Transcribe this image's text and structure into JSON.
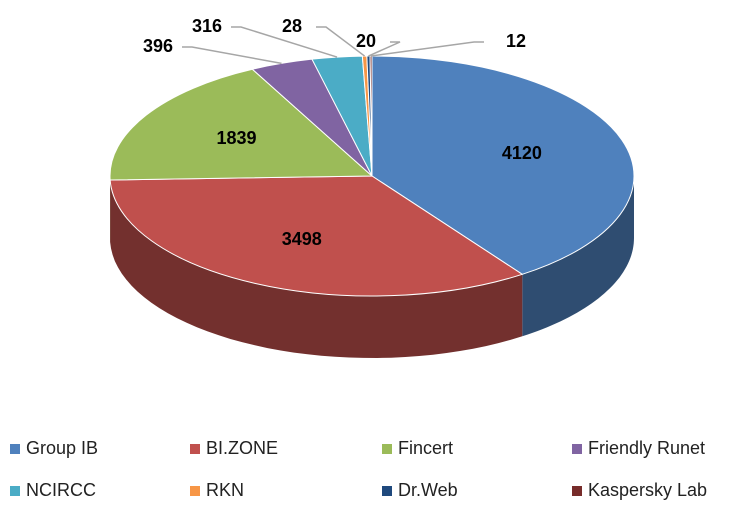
{
  "chart_data": {
    "type": "pie3d",
    "categories": [
      "Group IB",
      "BI.ZONE",
      "Fincert",
      "Friendly Runet",
      "NCIRCC",
      "RKN",
      "Dr.Web",
      "Kaspersky Lab"
    ],
    "values": [
      4120,
      3498,
      1839,
      396,
      316,
      28,
      20,
      12
    ],
    "colors": [
      "#4f81bd",
      "#c0504d",
      "#9bbb59",
      "#8064a2",
      "#4bacc6",
      "#f79646",
      "#1f497d",
      "#772c2a"
    ],
    "legend": "bottom"
  }
}
